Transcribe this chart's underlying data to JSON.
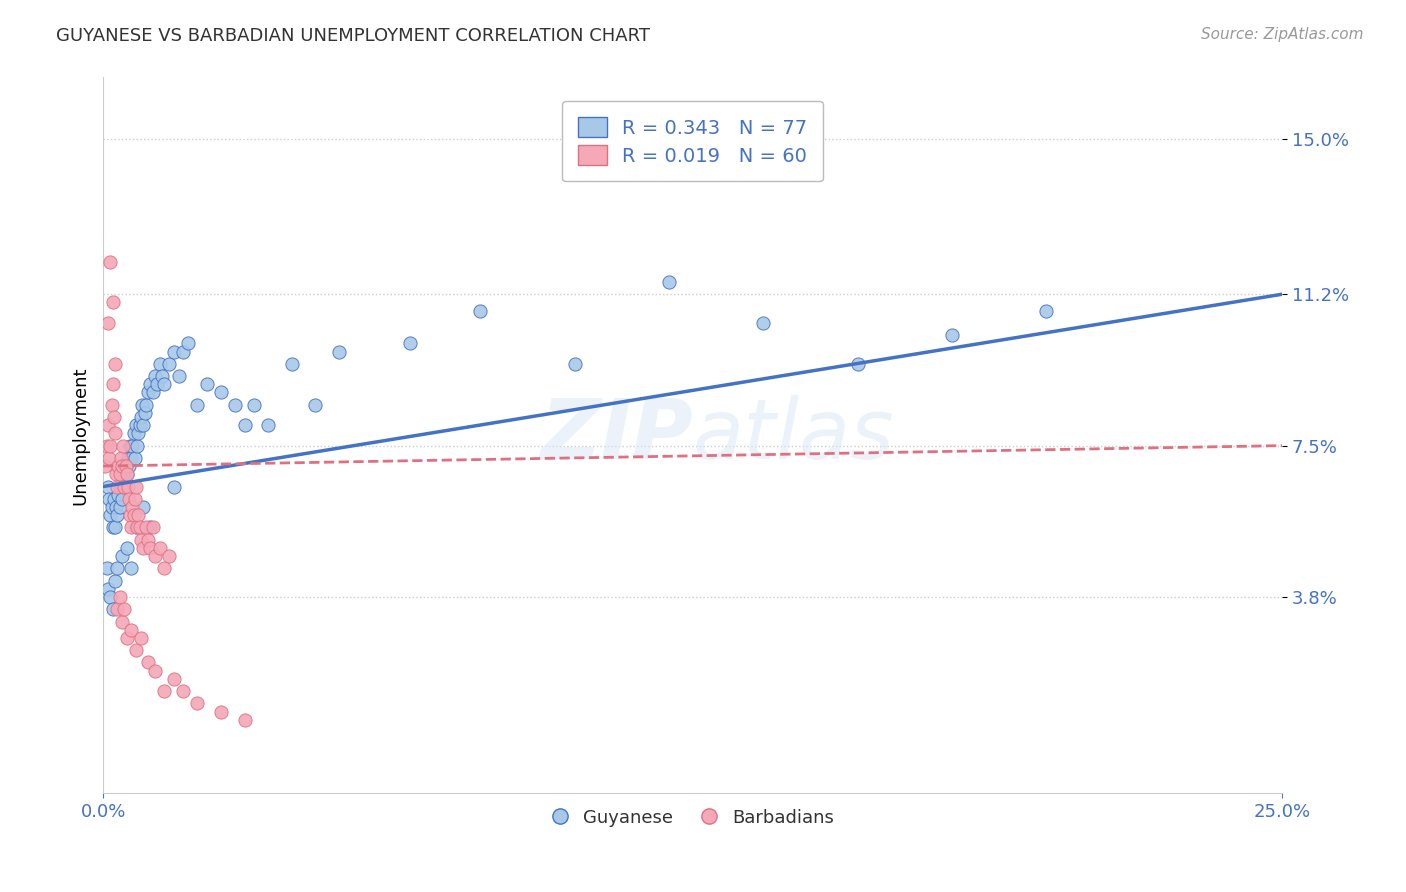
{
  "title": "GUYANESE VS BARBADIAN UNEMPLOYMENT CORRELATION CHART",
  "source": "Source: ZipAtlas.com",
  "ylabel": "Unemployment",
  "xlim": [
    0.0,
    25.0
  ],
  "ylim": [
    -1.0,
    16.5
  ],
  "yticks": [
    3.8,
    7.5,
    11.2,
    15.0
  ],
  "xticks": [
    0.0,
    25.0
  ],
  "xtick_labels": [
    "0.0%",
    "25.0%"
  ],
  "ytick_labels": [
    "3.8%",
    "7.5%",
    "11.2%",
    "15.0%"
  ],
  "guyanese_color": "#a8c8e8",
  "barbadian_color": "#f4a8b8",
  "guyanese_line_color": "#4472c4",
  "barbadian_line_color": "#e07080",
  "legend_label1": "Guyanese",
  "legend_label2": "Barbadians",
  "blue_line_x0": 0.0,
  "blue_line_y0": 6.5,
  "blue_line_x1": 25.0,
  "blue_line_y1": 11.2,
  "pink_line_x0": 0.0,
  "pink_line_y0": 7.0,
  "pink_line_x1": 25.0,
  "pink_line_y1": 7.5,
  "guyanese_x": [
    0.1,
    0.12,
    0.15,
    0.18,
    0.2,
    0.22,
    0.25,
    0.28,
    0.3,
    0.32,
    0.35,
    0.38,
    0.4,
    0.42,
    0.45,
    0.48,
    0.5,
    0.52,
    0.55,
    0.58,
    0.6,
    0.62,
    0.65,
    0.68,
    0.7,
    0.72,
    0.75,
    0.78,
    0.8,
    0.82,
    0.85,
    0.88,
    0.9,
    0.95,
    1.0,
    1.05,
    1.1,
    1.15,
    1.2,
    1.25,
    1.3,
    1.4,
    1.5,
    1.6,
    1.7,
    1.8,
    2.0,
    2.2,
    2.5,
    2.8,
    3.0,
    3.2,
    3.5,
    4.0,
    4.5,
    5.0,
    6.5,
    8.0,
    10.0,
    12.0,
    14.0,
    16.0,
    18.0,
    20.0,
    0.08,
    0.1,
    0.15,
    0.2,
    0.25,
    0.3,
    0.4,
    0.5,
    0.6,
    0.7,
    0.85,
    1.0,
    1.5
  ],
  "guyanese_y": [
    6.5,
    6.2,
    5.8,
    6.0,
    5.5,
    6.2,
    5.5,
    6.0,
    5.8,
    6.3,
    6.0,
    6.5,
    6.2,
    6.8,
    6.5,
    7.0,
    6.8,
    7.2,
    7.0,
    7.5,
    7.2,
    7.5,
    7.8,
    7.2,
    8.0,
    7.5,
    7.8,
    8.0,
    8.2,
    8.5,
    8.0,
    8.3,
    8.5,
    8.8,
    9.0,
    8.8,
    9.2,
    9.0,
    9.5,
    9.2,
    9.0,
    9.5,
    9.8,
    9.2,
    9.8,
    10.0,
    8.5,
    9.0,
    8.8,
    8.5,
    8.0,
    8.5,
    8.0,
    9.5,
    8.5,
    9.8,
    10.0,
    10.8,
    9.5,
    11.5,
    10.5,
    9.5,
    10.2,
    10.8,
    4.5,
    4.0,
    3.8,
    3.5,
    4.2,
    4.5,
    4.8,
    5.0,
    4.5,
    5.5,
    6.0,
    5.5,
    6.5
  ],
  "barbadian_x": [
    0.05,
    0.08,
    0.1,
    0.12,
    0.15,
    0.18,
    0.2,
    0.22,
    0.25,
    0.28,
    0.3,
    0.32,
    0.35,
    0.38,
    0.4,
    0.42,
    0.45,
    0.48,
    0.5,
    0.52,
    0.55,
    0.58,
    0.6,
    0.62,
    0.65,
    0.68,
    0.7,
    0.72,
    0.75,
    0.78,
    0.8,
    0.85,
    0.9,
    0.95,
    1.0,
    1.05,
    1.1,
    1.2,
    1.3,
    1.4,
    0.1,
    0.15,
    0.2,
    0.25,
    0.3,
    0.35,
    0.4,
    0.45,
    0.5,
    0.6,
    0.7,
    0.8,
    0.95,
    1.1,
    1.3,
    1.5,
    1.7,
    2.0,
    2.5,
    3.0
  ],
  "barbadian_y": [
    7.0,
    7.5,
    8.0,
    7.2,
    7.5,
    8.5,
    9.0,
    8.2,
    7.8,
    6.8,
    6.5,
    7.0,
    6.8,
    7.2,
    7.0,
    7.5,
    6.5,
    7.0,
    6.8,
    6.5,
    6.2,
    5.8,
    5.5,
    6.0,
    5.8,
    6.2,
    6.5,
    5.5,
    5.8,
    5.5,
    5.2,
    5.0,
    5.5,
    5.2,
    5.0,
    5.5,
    4.8,
    5.0,
    4.5,
    4.8,
    10.5,
    12.0,
    11.0,
    9.5,
    3.5,
    3.8,
    3.2,
    3.5,
    2.8,
    3.0,
    2.5,
    2.8,
    2.2,
    2.0,
    1.5,
    1.8,
    1.5,
    1.2,
    1.0,
    0.8
  ]
}
